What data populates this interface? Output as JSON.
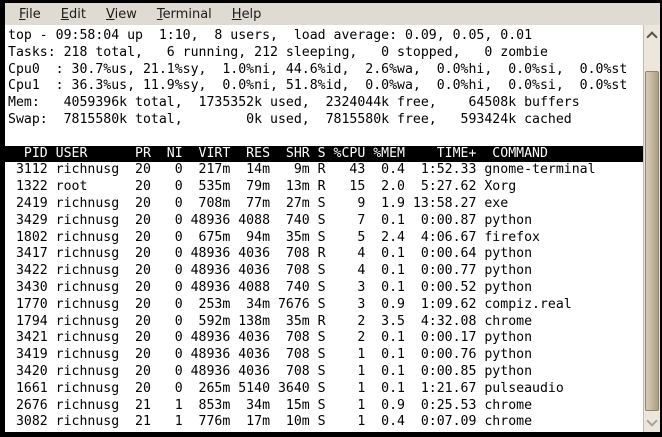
{
  "menubar": {
    "items": [
      {
        "label": "File",
        "mnemonic": "F"
      },
      {
        "label": "Edit",
        "mnemonic": "E"
      },
      {
        "label": "View",
        "mnemonic": "V"
      },
      {
        "label": "Terminal",
        "mnemonic": "T"
      },
      {
        "label": "Help",
        "mnemonic": "H"
      }
    ]
  },
  "terminal": {
    "summary_lines": [
      "top - 09:58:04 up  1:10,  8 users,  load average: 0.09, 0.05, 0.01",
      "Tasks: 218 total,   6 running, 212 sleeping,   0 stopped,   0 zombie",
      "Cpu0  : 30.7%us, 21.1%sy,  1.0%ni, 44.6%id,  2.6%wa,  0.0%hi,  0.0%si,  0.0%st",
      "Cpu1  : 36.3%us, 11.9%sy,  0.0%ni, 51.8%id,  0.0%wa,  0.0%hi,  0.0%si,  0.0%st",
      "Mem:   4059396k total,  1735352k used,  2324044k free,    64508k buffers",
      "Swap:  7815580k total,        0k used,  7815580k free,   593424k cached"
    ],
    "stats": {
      "time": "09:58:04",
      "uptime": "1:10",
      "users": "8",
      "load_average": [
        "0.09",
        "0.05",
        "0.01"
      ],
      "tasks": {
        "total": "218",
        "running": "6",
        "sleeping": "212",
        "stopped": "0",
        "zombie": "0"
      }
    },
    "table": {
      "columns": [
        "PID",
        "USER",
        "PR",
        "NI",
        "VIRT",
        "RES",
        "SHR",
        "S",
        "%CPU",
        "%MEM",
        "TIME+",
        "COMMAND"
      ],
      "rows": [
        [
          "3112",
          "richnusg",
          "20",
          "0",
          "217m",
          "14m",
          "9m",
          "R",
          "43",
          "0.4",
          "1:52.33",
          "gnome-terminal"
        ],
        [
          "1322",
          "root",
          "20",
          "0",
          "535m",
          "79m",
          "13m",
          "R",
          "15",
          "2.0",
          "5:27.62",
          "Xorg"
        ],
        [
          "2419",
          "richnusg",
          "20",
          "0",
          "708m",
          "77m",
          "27m",
          "S",
          "9",
          "1.9",
          "13:58.27",
          "exe"
        ],
        [
          "3429",
          "richnusg",
          "20",
          "0",
          "48936",
          "4088",
          "740",
          "S",
          "7",
          "0.1",
          "0:00.87",
          "python"
        ],
        [
          "1802",
          "richnusg",
          "20",
          "0",
          "675m",
          "94m",
          "35m",
          "S",
          "5",
          "2.4",
          "4:06.67",
          "firefox"
        ],
        [
          "3417",
          "richnusg",
          "20",
          "0",
          "48936",
          "4036",
          "708",
          "R",
          "4",
          "0.1",
          "0:00.64",
          "python"
        ],
        [
          "3422",
          "richnusg",
          "20",
          "0",
          "48936",
          "4036",
          "708",
          "S",
          "4",
          "0.1",
          "0:00.77",
          "python"
        ],
        [
          "3430",
          "richnusg",
          "20",
          "0",
          "48936",
          "4088",
          "740",
          "S",
          "3",
          "0.1",
          "0:00.52",
          "python"
        ],
        [
          "1770",
          "richnusg",
          "20",
          "0",
          "253m",
          "34m",
          "7676",
          "S",
          "3",
          "0.9",
          "1:09.62",
          "compiz.real"
        ],
        [
          "1794",
          "richnusg",
          "20",
          "0",
          "592m",
          "138m",
          "35m",
          "R",
          "2",
          "3.5",
          "4:32.08",
          "chrome"
        ],
        [
          "3421",
          "richnusg",
          "20",
          "0",
          "48936",
          "4036",
          "708",
          "S",
          "2",
          "0.1",
          "0:00.17",
          "python"
        ],
        [
          "3419",
          "richnusg",
          "20",
          "0",
          "48936",
          "4036",
          "708",
          "S",
          "1",
          "0.1",
          "0:00.76",
          "python"
        ],
        [
          "3420",
          "richnusg",
          "20",
          "0",
          "48936",
          "4036",
          "708",
          "S",
          "1",
          "0.1",
          "0:00.85",
          "python"
        ],
        [
          "1661",
          "richnusg",
          "20",
          "0",
          "265m",
          "5140",
          "3640",
          "S",
          "1",
          "0.1",
          "1:21.67",
          "pulseaudio"
        ],
        [
          "2676",
          "richnusg",
          "21",
          "1",
          "853m",
          "34m",
          "15m",
          "S",
          "1",
          "0.9",
          "0:25.53",
          "chrome"
        ],
        [
          "3082",
          "richnusg",
          "21",
          "1",
          "776m",
          "17m",
          "10m",
          "S",
          "1",
          "0.4",
          "0:07.09",
          "chrome"
        ]
      ]
    }
  },
  "colors": {
    "window_border": "#000000",
    "menubar_bg": "#dfdbd3",
    "terminal_bg": "#ffffff",
    "terminal_fg": "#000000",
    "table_header_bg": "#000000",
    "table_header_fg": "#ffffff",
    "scrollbar_trough": "#ece6dd",
    "scrollbar_thumb": "#c2b59c"
  }
}
